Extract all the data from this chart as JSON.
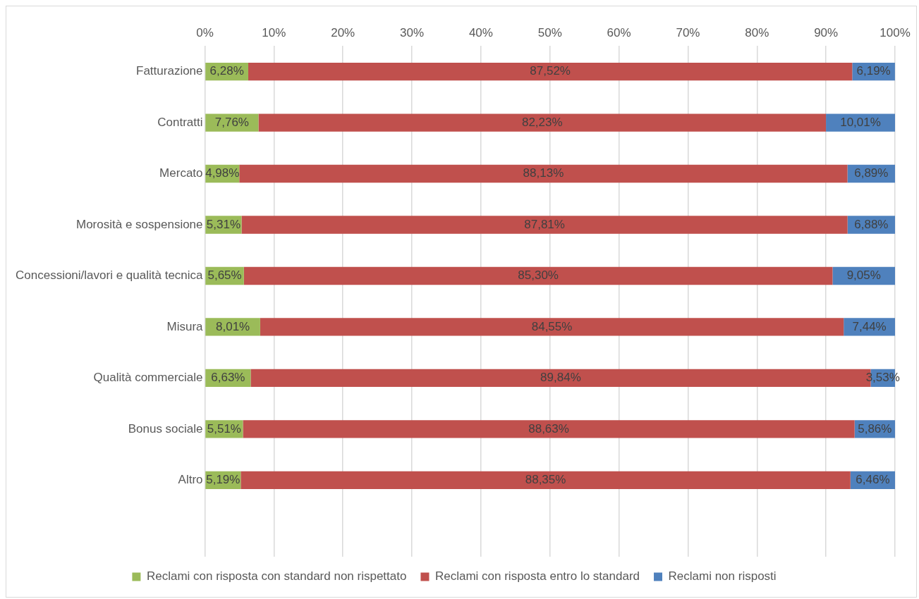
{
  "chart_data": {
    "type": "bar",
    "orientation": "horizontal",
    "stacked": true,
    "categories": [
      "Fatturazione",
      "Contratti",
      "Mercato",
      "Morosità e sospensione",
      "Concessioni/lavori e qualità tecnica",
      "Misura",
      "Qualità commerciale",
      "Bonus sociale",
      "Altro",
      null
    ],
    "series": [
      {
        "name": "Reclami con risposta con standard non rispettato",
        "color": "#9bbb59",
        "values": [
          6.28,
          7.76,
          4.98,
          5.31,
          5.65,
          8.01,
          6.63,
          5.51,
          5.19,
          null
        ],
        "value_labels": [
          "6,28%",
          "7,76%",
          "4,98%",
          "5,31%",
          "5,65%",
          "8,01%",
          "6,63%",
          "5,51%",
          "5,19%",
          null
        ]
      },
      {
        "name": "Reclami con risposta entro lo standard",
        "color": "#c0504d",
        "values": [
          87.52,
          82.23,
          88.13,
          87.81,
          85.3,
          84.55,
          89.84,
          88.63,
          88.35,
          null
        ],
        "value_labels": [
          "87,52%",
          "82,23%",
          "88,13%",
          "87,81%",
          "85,30%",
          "84,55%",
          "89,84%",
          "88,63%",
          "88,35%",
          null
        ]
      },
      {
        "name": "Reclami non risposti",
        "color": "#4f81bd",
        "values": [
          6.19,
          10.01,
          6.89,
          6.88,
          9.05,
          7.44,
          3.53,
          5.86,
          6.46,
          null
        ],
        "value_labels": [
          "6,19%",
          "10,01%",
          "6,89%",
          "6,88%",
          "9,05%",
          "7,44%",
          "3,53%",
          "5,86%",
          "6,46%",
          null
        ]
      }
    ],
    "xlim": [
      0,
      100
    ],
    "xticks": [
      {
        "value": 0,
        "label": "0%"
      },
      {
        "value": 10,
        "label": "10%"
      },
      {
        "value": 20,
        "label": "20%"
      },
      {
        "value": 30,
        "label": "30%"
      },
      {
        "value": 40,
        "label": "40%"
      },
      {
        "value": 50,
        "label": "50%"
      },
      {
        "value": 60,
        "label": "60%"
      },
      {
        "value": 70,
        "label": "70%"
      },
      {
        "value": 80,
        "label": "80%"
      },
      {
        "value": 90,
        "label": "90%"
      },
      {
        "value": 100,
        "label": "100%"
      }
    ],
    "grid": "x",
    "legend": "bottom"
  }
}
